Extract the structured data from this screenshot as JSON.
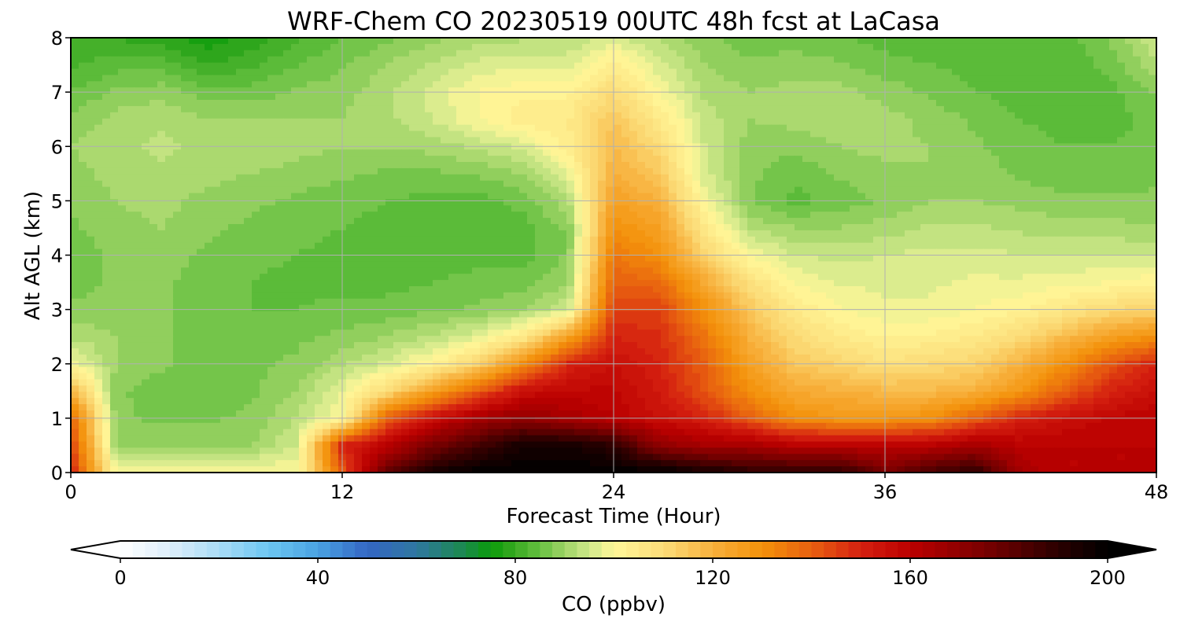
{
  "chart_data": {
    "type": "heatmap",
    "title": "WRF-Chem CO  20230519 00UTC 48h fcst at LaCasa",
    "xlabel": "Forecast Time (Hour)",
    "ylabel": "Alt AGL (km)",
    "xlim": [
      0,
      48
    ],
    "ylim": [
      0,
      8
    ],
    "x_ticks": [
      0,
      12,
      24,
      36,
      48
    ],
    "y_ticks": [
      0,
      1,
      2,
      3,
      4,
      5,
      6,
      7,
      8
    ],
    "grid": true,
    "x": [
      0,
      2,
      4,
      6,
      8,
      10,
      12,
      14,
      16,
      18,
      20,
      22,
      24,
      26,
      28,
      30,
      32,
      34,
      36,
      38,
      40,
      42,
      44,
      46,
      48
    ],
    "y": [
      0,
      0.5,
      1,
      1.5,
      2,
      2.5,
      3,
      3.5,
      4,
      4.5,
      5,
      5.5,
      6,
      6.5,
      7,
      7.5,
      8
    ],
    "z": [
      [
        150,
        100,
        100,
        100,
        100,
        100,
        140,
        180,
        195,
        200,
        200,
        200,
        200,
        200,
        195,
        190,
        190,
        190,
        175,
        185,
        190,
        165,
        160,
        160,
        160
      ],
      [
        145,
        90,
        90,
        90,
        90,
        95,
        150,
        160,
        175,
        185,
        195,
        195,
        190,
        170,
        165,
        165,
        160,
        160,
        160,
        160,
        165,
        160,
        160,
        160,
        160
      ],
      [
        140,
        88,
        87,
        87,
        88,
        93,
        100,
        140,
        155,
        165,
        170,
        165,
        160,
        155,
        150,
        140,
        130,
        128,
        128,
        130,
        140,
        150,
        155,
        158,
        160
      ],
      [
        120,
        88,
        86,
        86,
        87,
        90,
        98,
        110,
        125,
        140,
        155,
        158,
        158,
        152,
        142,
        130,
        122,
        120,
        118,
        118,
        120,
        128,
        140,
        150,
        155
      ],
      [
        100,
        90,
        88,
        86,
        87,
        88,
        92,
        96,
        102,
        112,
        130,
        150,
        155,
        150,
        140,
        125,
        115,
        112,
        108,
        110,
        112,
        120,
        130,
        142,
        150
      ],
      [
        92,
        90,
        88,
        86,
        86,
        87,
        88,
        90,
        93,
        97,
        105,
        125,
        150,
        148,
        136,
        120,
        110,
        105,
        102,
        103,
        105,
        110,
        118,
        125,
        130
      ],
      [
        88,
        89,
        88,
        86,
        85,
        85,
        86,
        86,
        87,
        88,
        90,
        95,
        145,
        145,
        130,
        115,
        105,
        100,
        98,
        98,
        100,
        102,
        106,
        110,
        112
      ],
      [
        86,
        88,
        88,
        86,
        85,
        84,
        84,
        84,
        85,
        86,
        86,
        90,
        140,
        138,
        122,
        108,
        100,
        97,
        97,
        97,
        98,
        98,
        99,
        100,
        102
      ],
      [
        86,
        88,
        89,
        87,
        86,
        85,
        84,
        83,
        83,
        84,
        84,
        88,
        135,
        130,
        112,
        100,
        95,
        94,
        95,
        96,
        96,
        95,
        95,
        95,
        95
      ],
      [
        87,
        89,
        90,
        88,
        87,
        86,
        85,
        84,
        83,
        83,
        84,
        88,
        130,
        125,
        106,
        92,
        90,
        90,
        91,
        93,
        93,
        92,
        91,
        91,
        90
      ],
      [
        88,
        90,
        91,
        89,
        88,
        87,
        86,
        85,
        84,
        84,
        86,
        92,
        125,
        120,
        100,
        88,
        84,
        86,
        88,
        90,
        90,
        89,
        88,
        88,
        88
      ],
      [
        89,
        91,
        92,
        91,
        90,
        89,
        88,
        87,
        87,
        88,
        90,
        98,
        120,
        115,
        96,
        88,
        86,
        88,
        89,
        90,
        89,
        87,
        86,
        86,
        87
      ],
      [
        90,
        92,
        93,
        92,
        92,
        91,
        90,
        90,
        91,
        93,
        96,
        104,
        118,
        110,
        95,
        89,
        88,
        90,
        91,
        90,
        88,
        86,
        85,
        85,
        86
      ],
      [
        88,
        91,
        92,
        90,
        90,
        90,
        90,
        92,
        95,
        100,
        104,
        105,
        115,
        105,
        94,
        90,
        91,
        92,
        91,
        89,
        87,
        85,
        84,
        84,
        86
      ],
      [
        85,
        88,
        89,
        86,
        86,
        88,
        89,
        92,
        96,
        100,
        102,
        102,
        110,
        100,
        92,
        90,
        91,
        91,
        89,
        87,
        85,
        84,
        83,
        84,
        88
      ],
      [
        82,
        84,
        84,
        80,
        82,
        85,
        87,
        90,
        93,
        96,
        97,
        97,
        104,
        96,
        90,
        88,
        89,
        88,
        86,
        85,
        84,
        83,
        83,
        86,
        92
      ],
      [
        80,
        80,
        78,
        76,
        78,
        82,
        85,
        87,
        89,
        91,
        92,
        92,
        96,
        92,
        88,
        86,
        86,
        85,
        84,
        83,
        83,
        83,
        84,
        88,
        95
      ]
    ],
    "colorbar": {
      "label": "CO  (ppbv)",
      "min": 0,
      "max": 200,
      "ticks": [
        0,
        40,
        80,
        120,
        160,
        200
      ],
      "extend": "both",
      "orientation": "horizontal",
      "stops": [
        {
          "value": 0,
          "color": "#ffffff"
        },
        {
          "value": 10,
          "color": "#ddeefa"
        },
        {
          "value": 20,
          "color": "#a9dcf6"
        },
        {
          "value": 30,
          "color": "#6cc6f2"
        },
        {
          "value": 40,
          "color": "#4aa3e2"
        },
        {
          "value": 50,
          "color": "#3466c4"
        },
        {
          "value": 60,
          "color": "#2f77a0"
        },
        {
          "value": 70,
          "color": "#1a8a4a"
        },
        {
          "value": 75,
          "color": "#0a9b0a"
        },
        {
          "value": 80,
          "color": "#3aaa22"
        },
        {
          "value": 85,
          "color": "#66c040"
        },
        {
          "value": 90,
          "color": "#9fd466"
        },
        {
          "value": 95,
          "color": "#cfe88a"
        },
        {
          "value": 100,
          "color": "#fff799"
        },
        {
          "value": 110,
          "color": "#fbdc78"
        },
        {
          "value": 120,
          "color": "#f7b03c"
        },
        {
          "value": 130,
          "color": "#f3910a"
        },
        {
          "value": 140,
          "color": "#e86010"
        },
        {
          "value": 150,
          "color": "#d52010"
        },
        {
          "value": 160,
          "color": "#bb0000"
        },
        {
          "value": 175,
          "color": "#7a0000"
        },
        {
          "value": 190,
          "color": "#2a0000"
        },
        {
          "value": 200,
          "color": "#000000"
        }
      ]
    }
  }
}
